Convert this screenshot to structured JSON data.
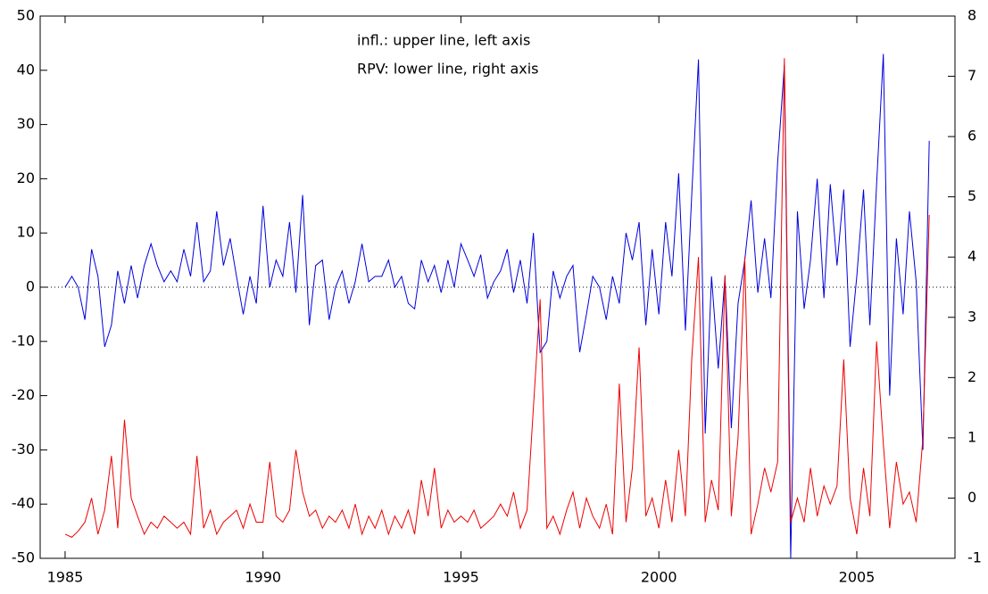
{
  "chart_data": {
    "type": "line",
    "annotations": [
      "infl.: upper line, left axis",
      "RPV: lower line, right axis"
    ],
    "x": [
      1985,
      1985.17,
      1985.33,
      1985.5,
      1985.67,
      1985.83,
      1986,
      1986.17,
      1986.33,
      1986.5,
      1986.67,
      1986.83,
      1987,
      1987.17,
      1987.33,
      1987.5,
      1987.67,
      1987.83,
      1988,
      1988.17,
      1988.33,
      1988.5,
      1988.67,
      1988.83,
      1989,
      1989.17,
      1989.33,
      1989.5,
      1989.67,
      1989.83,
      1990,
      1990.17,
      1990.33,
      1990.5,
      1990.67,
      1990.83,
      1991,
      1991.17,
      1991.33,
      1991.5,
      1991.67,
      1991.83,
      1992,
      1992.17,
      1992.33,
      1992.5,
      1992.67,
      1992.83,
      1993,
      1993.17,
      1993.33,
      1993.5,
      1993.67,
      1993.83,
      1994,
      1994.17,
      1994.33,
      1994.5,
      1994.67,
      1994.83,
      1995,
      1995.17,
      1995.33,
      1995.5,
      1995.67,
      1995.83,
      1996,
      1996.17,
      1996.33,
      1996.5,
      1996.67,
      1996.83,
      1997,
      1997.17,
      1997.33,
      1997.5,
      1997.67,
      1997.83,
      1998,
      1998.17,
      1998.33,
      1998.5,
      1998.67,
      1998.83,
      1999,
      1999.17,
      1999.33,
      1999.5,
      1999.67,
      1999.83,
      2000,
      2000.17,
      2000.33,
      2000.5,
      2000.67,
      2000.83,
      2001,
      2001.17,
      2001.33,
      2001.5,
      2001.67,
      2001.83,
      2002,
      2002.17,
      2002.33,
      2002.5,
      2002.67,
      2002.83,
      2003,
      2003.17,
      2003.33,
      2003.5,
      2003.67,
      2003.83,
      2004,
      2004.17,
      2004.33,
      2004.5,
      2004.67,
      2004.83,
      2005,
      2005.17,
      2005.33,
      2005.5,
      2005.67,
      2005.83,
      2006,
      2006.17,
      2006.33,
      2006.5,
      2006.67,
      2006.83
    ],
    "series": [
      {
        "color": "#0000dd",
        "values": [
          0,
          2,
          0,
          -6,
          7,
          2,
          -11,
          -7,
          3,
          -3,
          4,
          -2,
          4,
          8,
          4,
          1,
          3,
          1,
          7,
          2,
          12,
          1,
          3,
          14,
          4,
          9,
          2,
          -5,
          2,
          -3,
          15,
          0,
          5,
          2,
          12,
          -1,
          17,
          -7,
          4,
          5,
          -6,
          0,
          3,
          -3,
          1,
          8,
          1,
          2,
          2,
          5,
          0,
          2,
          -3,
          -4,
          5,
          1,
          4,
          -1,
          5,
          0,
          8,
          5,
          2,
          6,
          -2,
          1,
          3,
          7,
          -1,
          5,
          -3,
          10,
          -12,
          -10,
          3,
          -2,
          2,
          4,
          -12,
          -5,
          2,
          0,
          -6,
          2,
          -3,
          10,
          5,
          12,
          -7,
          7,
          -5,
          12,
          2,
          21,
          -8,
          17,
          42,
          -27,
          2,
          -15,
          2,
          -26,
          -3,
          5,
          16,
          -1,
          9,
          -2,
          23,
          41,
          -50,
          14,
          -4,
          5,
          20,
          -2,
          19,
          4,
          18,
          -11,
          2,
          18,
          -7,
          19,
          43,
          -20,
          9,
          -5,
          14,
          1,
          -30,
          27
        ]
      },
      {
        "color": "#ee0000",
        "axis": "y2",
        "values": [
          -0.6,
          -0.65,
          -0.55,
          -0.4,
          0,
          -0.6,
          -0.2,
          0.7,
          -0.5,
          1.3,
          0,
          -0.3,
          -0.6,
          -0.4,
          -0.5,
          -0.3,
          -0.4,
          -0.5,
          -0.4,
          -0.6,
          0.7,
          -0.5,
          -0.2,
          -0.6,
          -0.4,
          -0.3,
          -0.2,
          -0.5,
          -0.1,
          -0.4,
          -0.4,
          0.6,
          -0.3,
          -0.4,
          -0.2,
          0.8,
          0.1,
          -0.3,
          -0.2,
          -0.5,
          -0.3,
          -0.4,
          -0.2,
          -0.5,
          -0.1,
          -0.6,
          -0.3,
          -0.5,
          -0.2,
          -0.6,
          -0.3,
          -0.5,
          -0.2,
          -0.6,
          0.3,
          -0.3,
          0.5,
          -0.5,
          -0.2,
          -0.4,
          -0.3,
          -0.4,
          -0.2,
          -0.5,
          -0.4,
          -0.3,
          -0.1,
          -0.3,
          0.1,
          -0.5,
          -0.2,
          1.5,
          3.3,
          -0.5,
          -0.3,
          -0.6,
          -0.2,
          0.1,
          -0.5,
          0,
          -0.3,
          -0.5,
          -0.1,
          -0.6,
          1.9,
          -0.4,
          0.5,
          2.5,
          -0.3,
          0,
          -0.5,
          0.3,
          -0.4,
          0.8,
          -0.3,
          2.3,
          4,
          -0.4,
          0.3,
          -0.2,
          3.7,
          -0.3,
          1,
          4,
          -0.6,
          -0.1,
          0.5,
          0.1,
          0.6,
          7.3,
          -0.4,
          0,
          -0.4,
          0.5,
          -0.3,
          0.2,
          -0.1,
          0.2,
          2.3,
          0,
          -0.6,
          0.5,
          -0.3,
          2.6,
          0.9,
          -0.5,
          0.6,
          -0.1,
          0.1,
          -0.4,
          1,
          4.7
        ]
      }
    ],
    "xlim": [
      1984.37,
      2007.48
    ],
    "xticks": [
      1985,
      1990,
      1995,
      2000,
      2005
    ],
    "ylim": [
      -50,
      50
    ],
    "yticks": [
      -50,
      -40,
      -30,
      -20,
      -10,
      0,
      10,
      20,
      30,
      40,
      50
    ],
    "y2lim": [
      -1,
      8
    ],
    "y2ticks": [
      -1,
      0,
      1,
      2,
      3,
      4,
      5,
      6,
      7,
      8
    ],
    "zero_line": true
  }
}
